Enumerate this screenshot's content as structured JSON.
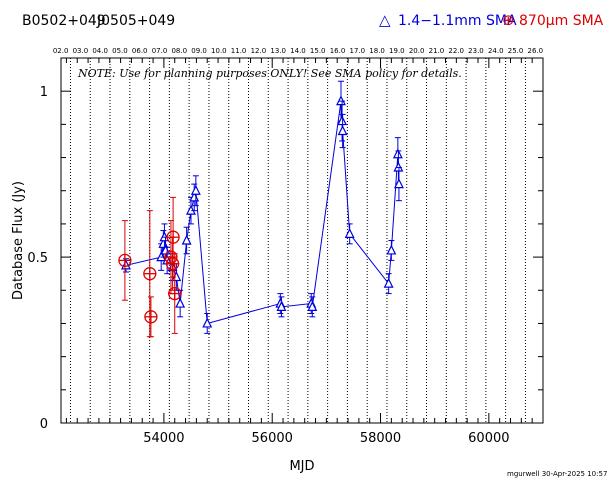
{
  "header": {
    "source_name": "B0502+049",
    "alias_name": "J0505+049",
    "legend_band1": "1.4−1.1mm SMA",
    "legend_band2": "870µm SMA"
  },
  "credit": "mgurwell 30-Apr-2025 10:57",
  "chart_data": {
    "type": "scatter",
    "title": "",
    "xlabel": "MJD",
    "ylabel": "Database Flux (Jy)",
    "xlim": [
      52100,
      61000
    ],
    "ylim": [
      0,
      1.1
    ],
    "x_ticks": [
      54000,
      56000,
      58000,
      60000
    ],
    "y_ticks": [
      0,
      0.5,
      1
    ],
    "y_tick_labels": [
      "0",
      "0.5",
      "1"
    ],
    "note": "NOTE: Use for planning purposes ONLY!  See SMA policy for details.",
    "top_axis_labels": [
      "02.0",
      "03.0",
      "04.0",
      "05.0",
      "06.0",
      "07.0",
      "08.0",
      "09.0",
      "10.0",
      "11.0",
      "12.0",
      "13.0",
      "14.0",
      "15.0",
      "16.0",
      "17.0",
      "18.0",
      "19.0",
      "20.0",
      "21.0",
      "22.0",
      "23.0",
      "24.0",
      "25.0",
      "26.0"
    ],
    "year_lines_mjd": [
      52275,
      52640,
      53005,
      53371,
      53736,
      54101,
      54466,
      54832,
      55197,
      55562,
      55927,
      56293,
      56658,
      57023,
      57388,
      57754,
      58119,
      58484,
      58849,
      59215,
      59580,
      59945,
      60310,
      60676
    ],
    "series": [
      {
        "name": "1.4−1.1mm SMA",
        "color": "#0000dd",
        "marker": "triangle",
        "connected": true,
        "points": [
          {
            "x": 53300,
            "y": 0.475,
            "err": 0.02
          },
          {
            "x": 53950,
            "y": 0.5,
            "err": 0.04
          },
          {
            "x": 53990,
            "y": 0.54,
            "err": 0.04
          },
          {
            "x": 54010,
            "y": 0.56,
            "err": 0.04
          },
          {
            "x": 54030,
            "y": 0.52,
            "err": 0.04
          },
          {
            "x": 54060,
            "y": 0.49,
            "err": 0.04
          },
          {
            "x": 54160,
            "y": 0.47,
            "err": 0.04
          },
          {
            "x": 54230,
            "y": 0.44,
            "err": 0.04
          },
          {
            "x": 54300,
            "y": 0.36,
            "err": 0.04
          },
          {
            "x": 54420,
            "y": 0.55,
            "err": 0.04
          },
          {
            "x": 54500,
            "y": 0.64,
            "err": 0.04
          },
          {
            "x": 54560,
            "y": 0.68,
            "err": 0.04
          },
          {
            "x": 54590,
            "y": 0.7,
            "err": 0.045
          },
          {
            "x": 54800,
            "y": 0.3,
            "err": 0.03
          },
          {
            "x": 56150,
            "y": 0.36,
            "err": 0.03
          },
          {
            "x": 56170,
            "y": 0.35,
            "err": 0.03
          },
          {
            "x": 56720,
            "y": 0.36,
            "err": 0.03
          },
          {
            "x": 56740,
            "y": 0.35,
            "err": 0.03
          },
          {
            "x": 57270,
            "y": 0.97,
            "err": 0.06
          },
          {
            "x": 57290,
            "y": 0.91,
            "err": 0.06
          },
          {
            "x": 57300,
            "y": 0.88,
            "err": 0.05
          },
          {
            "x": 57430,
            "y": 0.57,
            "err": 0.03
          },
          {
            "x": 58150,
            "y": 0.42,
            "err": 0.03
          },
          {
            "x": 58200,
            "y": 0.52,
            "err": 0.03
          },
          {
            "x": 58320,
            "y": 0.81,
            "err": 0.05
          },
          {
            "x": 58330,
            "y": 0.77,
            "err": 0.05
          },
          {
            "x": 58340,
            "y": 0.72,
            "err": 0.05
          }
        ]
      },
      {
        "name": "870µm SMA",
        "color": "#dd0000",
        "marker": "circle-plus",
        "connected": false,
        "points": [
          {
            "x": 53280,
            "y": 0.49,
            "err": 0.12
          },
          {
            "x": 53740,
            "y": 0.45,
            "err": 0.19
          },
          {
            "x": 53760,
            "y": 0.32,
            "err": 0.06
          },
          {
            "x": 54130,
            "y": 0.5,
            "err": 0.11
          },
          {
            "x": 54160,
            "y": 0.48,
            "err": 0.08
          },
          {
            "x": 54170,
            "y": 0.56,
            "err": 0.12
          },
          {
            "x": 54200,
            "y": 0.39,
            "err": 0.12
          }
        ]
      }
    ]
  }
}
